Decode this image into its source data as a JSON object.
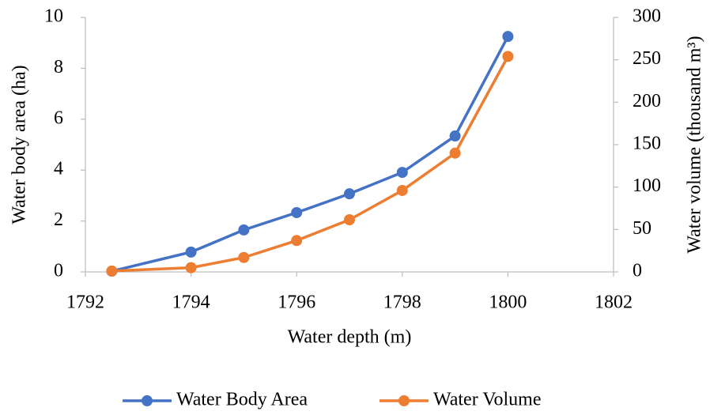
{
  "chart_data": {
    "type": "line",
    "x_label": "Water depth (m)",
    "y_label": "Water body area (ha)",
    "y2_label": "Water volume (thousand m³)",
    "x": [
      1792.5,
      1794,
      1795,
      1796,
      1797,
      1798,
      1799,
      1800
    ],
    "series": [
      {
        "name": "Water Body Area",
        "color": "#4472c4",
        "values": [
          0.03,
          0.78,
          1.65,
          2.33,
          3.07,
          3.91,
          5.34,
          9.25
        ]
      },
      {
        "name": "Water Volume",
        "color": "#ed7d31",
        "axis": "y2",
        "values": [
          1,
          5,
          17,
          37,
          61.5,
          96,
          140,
          254
        ]
      }
    ],
    "xlim": [
      1792,
      1802
    ],
    "xticks": [
      1792,
      1794,
      1796,
      1798,
      1800,
      1802
    ],
    "ylim": [
      0,
      10
    ],
    "yticks": [
      0,
      2,
      4,
      6,
      8,
      10
    ],
    "y2lim": [
      0,
      300
    ],
    "y2ticks": [
      0,
      50,
      100,
      150,
      200,
      250,
      300
    ],
    "legend": "bottom"
  }
}
